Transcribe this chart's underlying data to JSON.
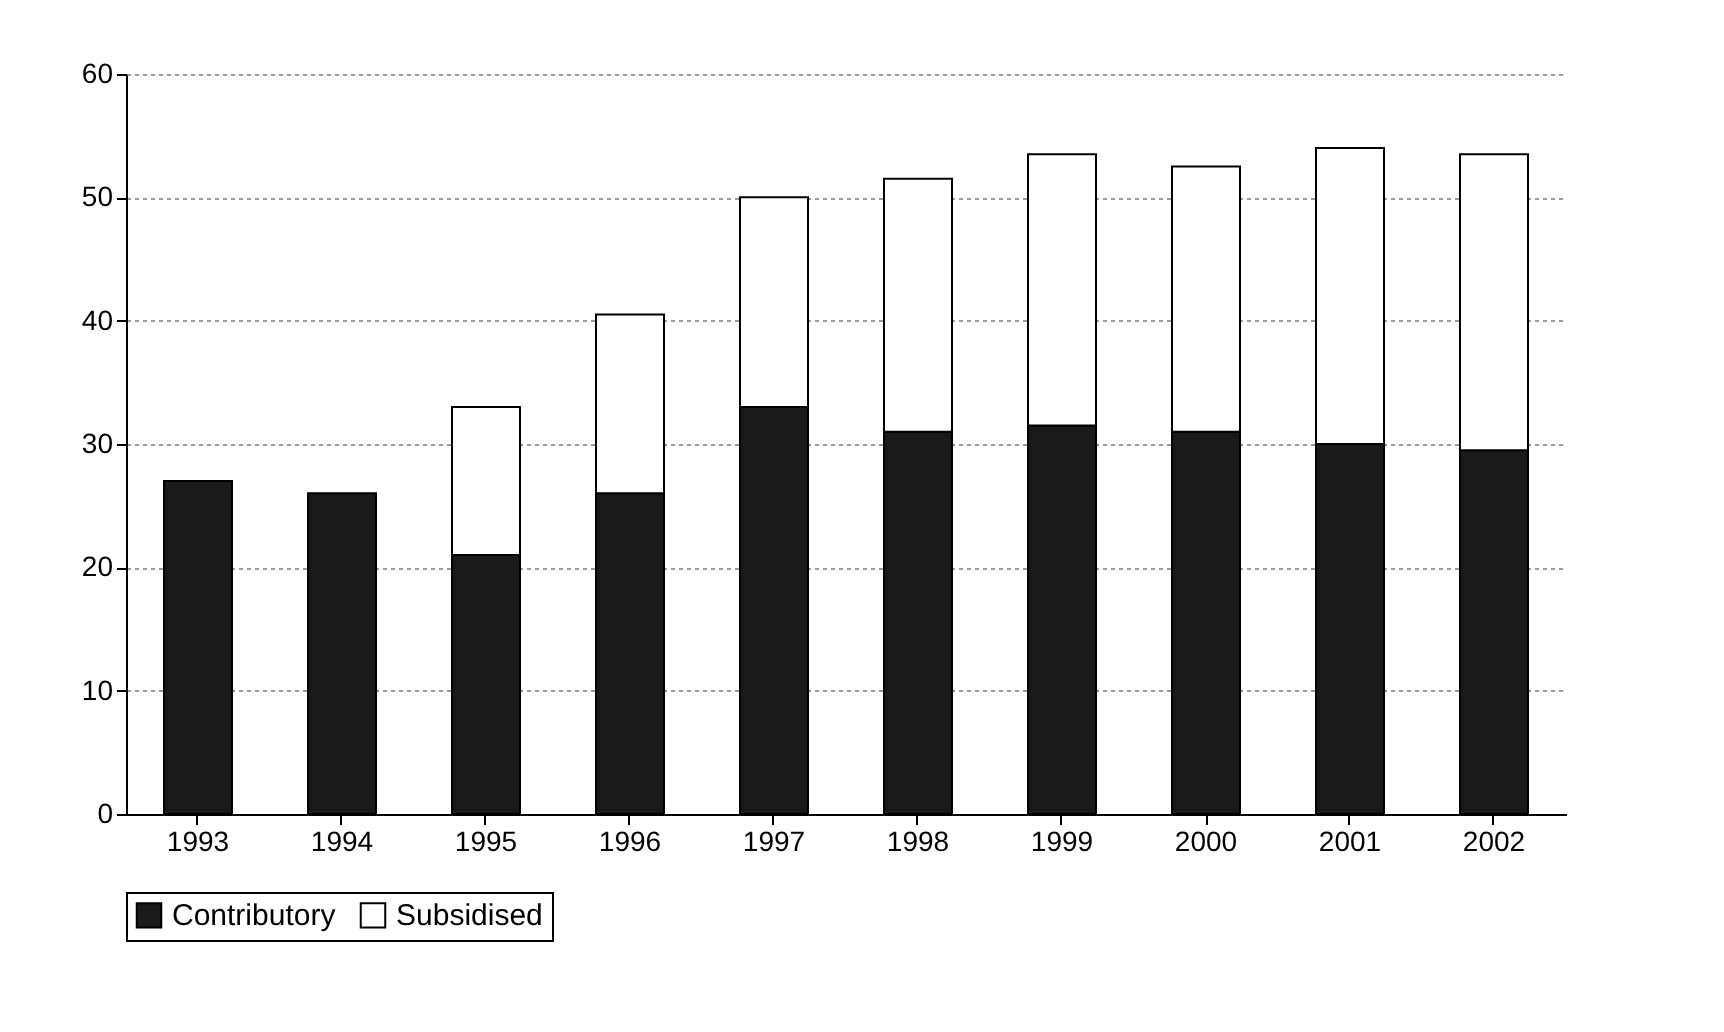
{
  "chart_data": {
    "type": "bar",
    "stacked": true,
    "categories": [
      "1993",
      "1994",
      "1995",
      "1996",
      "1997",
      "1998",
      "1999",
      "2000",
      "2001",
      "2002"
    ],
    "series": [
      {
        "name": "Contributory",
        "color": "#1a1a1a",
        "values": [
          27,
          26,
          21,
          26,
          33,
          31,
          31.5,
          31,
          30,
          29.5
        ]
      },
      {
        "name": "Subsidised",
        "color": "#ffffff",
        "values": [
          null,
          null,
          12,
          14.5,
          17,
          20.5,
          22,
          21.5,
          24,
          24
        ]
      }
    ],
    "ylim": [
      0,
      60
    ],
    "yticks": [
      0,
      10,
      20,
      30,
      40,
      50,
      60
    ],
    "grid": "y",
    "legend": "bottom"
  }
}
